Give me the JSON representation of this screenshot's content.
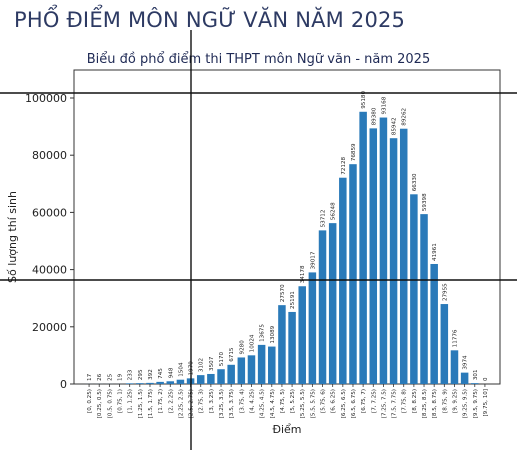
{
  "page_heading": "PHỔ ĐIỂM MÔN NGỮ VĂN NĂM 2025",
  "chart_data": {
    "type": "bar",
    "title": "Biểu đồ phổ điểm thi THPT môn Ngữ văn - năm 2025",
    "xlabel": "Điểm",
    "ylabel": "Số lượng thí sinh",
    "ylim": [
      0,
      100000
    ],
    "yticks": [
      "0",
      "20000",
      "40000",
      "60000",
      "80000",
      "100000"
    ],
    "grid": false,
    "bar_color": "#2a7ab9",
    "categories": [
      "[0, 0.25)",
      "[0.25, 0.5)",
      "[0.5, 0.75)",
      "[0.75, 1)",
      "[1, 1.25)",
      "[1.25, 1.5)",
      "[1.5, 1.75)",
      "[1.75, 2)",
      "[2, 2.25)",
      "[2.25, 2.5)",
      "[2.5, 2.75)",
      "[2.75, 3)",
      "[3, 3.25)",
      "[3.25, 3.5)",
      "[3.5, 3.75)",
      "[3.75, 4)",
      "[4, 4.25)",
      "[4.25, 4.5)",
      "[4.5, 4.75)",
      "[4.75, 5)",
      "[5, 5.25)",
      "[5.25, 5.5)",
      "[5.5, 5.75)",
      "[5.75, 6)",
      "[6, 6.25)",
      "[6.25, 6.5)",
      "[6.5, 6.75)",
      "[6.75, 7)",
      "[7, 7.25)",
      "[7.25, 7.5)",
      "[7.5, 7.75)",
      "[7.75, 8)",
      "[8, 8.25)",
      "[8.25, 8.5)",
      "[8.5, 8.75)",
      "[8.75, 9)",
      "[9, 9.25)",
      "[9.25, 9.5)",
      "[9.5, 9.75)",
      "[9.75, 10]"
    ],
    "values": [
      17,
      26,
      25,
      19,
      233,
      295,
      392,
      745,
      948,
      1504,
      1970,
      3102,
      3507,
      5170,
      6715,
      9280,
      10024,
      13675,
      13089,
      27570,
      25191,
      34178,
      39017,
      53712,
      56248,
      72128,
      76859,
      95180,
      89380,
      93168,
      85942,
      89262,
      66330,
      59398,
      41961,
      27955,
      11776,
      3974,
      301,
      0
    ]
  }
}
